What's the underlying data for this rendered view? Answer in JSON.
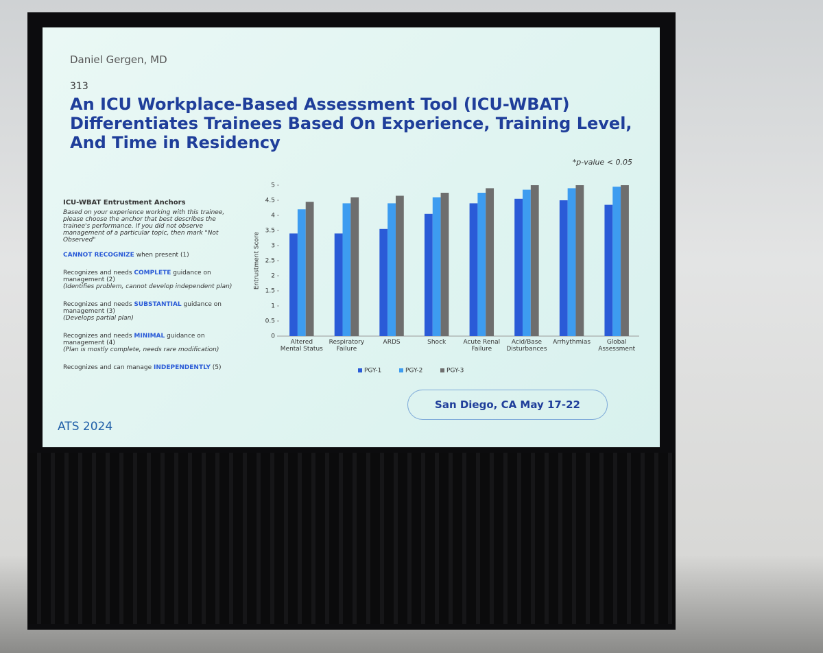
{
  "slide": {
    "presenter": "Daniel Gergen, MD",
    "number": "313",
    "title": "An ICU Workplace-Based Assessment Tool (ICU-WBAT) Differentiates Trainees Based On Experience, Training Level, And Time in Residency",
    "note": "*p-value < 0.05",
    "anchors_heading": "ICU-WBAT Entrustment Anchors",
    "instructions": "Based on your experience working with this trainee, please choose the anchor that best describes the trainee's performance. If you did not observe management of a particular topic, then mark \"Not Observed\"",
    "anchors": [
      {
        "pre": "",
        "key": "CANNOT RECOGNIZE",
        "post": " when present (1)"
      },
      {
        "pre": "Recognizes and needs ",
        "key": "COMPLETE",
        "post": " guidance on management (2)",
        "sub": "(Identifies problem, cannot develop independent plan)"
      },
      {
        "pre": "Recognizes and needs ",
        "key": "SUBSTANTIAL",
        "post": " guidance on management (3)",
        "sub": "(Develops partial plan)"
      },
      {
        "pre": "Recognizes and needs ",
        "key": "MINIMAL",
        "post": " guidance on management (4)",
        "sub": "(Plan is mostly complete, needs rare modification)"
      },
      {
        "pre": "Recognizes and can manage ",
        "key": "INDEPENDENTLY",
        "post": " (5)"
      }
    ],
    "logo": "ATS 2024",
    "location": "San Diego, CA May 17-22"
  },
  "chart_data": {
    "type": "bar",
    "y_label": "Entrustment Score",
    "categories": [
      "Altered Mental Status",
      "Respiratory Failure",
      "ARDS",
      "Shock",
      "Acute Renal Failure",
      "Acid/Base Disturbances",
      "Arrhythmias",
      "Global Assessment"
    ],
    "series": [
      {
        "name": "PGY-1",
        "color": "#2a5bd7",
        "values": [
          3.4,
          3.4,
          3.55,
          4.05,
          4.4,
          4.55,
          4.5,
          4.35
        ]
      },
      {
        "name": "PGY-2",
        "color": "#3d9cf0",
        "values": [
          4.2,
          4.4,
          4.4,
          4.6,
          4.75,
          4.85,
          4.9,
          4.95
        ]
      },
      {
        "name": "PGY-3",
        "color": "#6e6e6e",
        "values": [
          4.45,
          4.6,
          4.65,
          4.75,
          4.9,
          5,
          5,
          5
        ]
      }
    ],
    "ylim": [
      0,
      5
    ],
    "yticks": [
      0,
      0.5,
      1,
      1.5,
      2,
      2.5,
      3,
      3.5,
      4,
      4.5,
      5
    ]
  }
}
